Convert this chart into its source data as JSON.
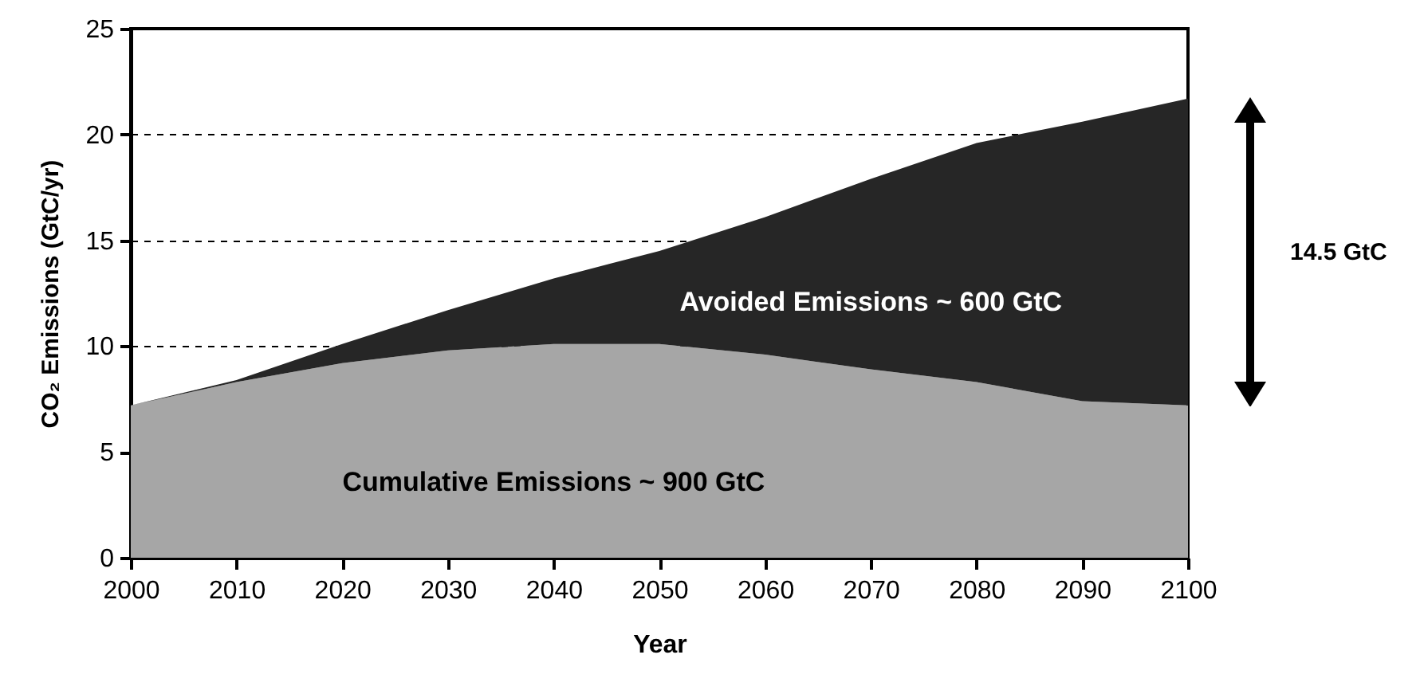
{
  "chart_data": {
    "type": "area",
    "stacked": true,
    "xlabel": "Year",
    "ylabel": "CO₂ Emissions (GtC/yr)",
    "x": [
      2000,
      2010,
      2020,
      2030,
      2040,
      2050,
      2060,
      2070,
      2080,
      2090,
      2100
    ],
    "series": [
      {
        "color": "#a6a6a6",
        "values": [
          7.2,
          8.3,
          9.2,
          9.8,
          10.1,
          10.1,
          9.6,
          8.9,
          8.3,
          7.4,
          7.2
        ]
      },
      {
        "color": "#262626",
        "values": [
          0,
          0.1,
          0.9,
          1.9,
          3.1,
          4.4,
          6.5,
          9.0,
          11.3,
          13.2,
          14.5
        ]
      }
    ],
    "xlim": [
      2000,
      2100
    ],
    "xticks": [
      2000,
      2010,
      2020,
      2030,
      2040,
      2050,
      2060,
      2070,
      2080,
      2090,
      2100
    ],
    "ylim": [
      0,
      25
    ],
    "yticks": [
      0,
      5,
      10,
      15,
      20,
      25
    ],
    "grid": "y",
    "line_style": "dashed",
    "annotations": [
      "Cumulative Emissions ~ 900 GtC",
      "Avoided Emissions ~ 600 GtC",
      "14.5 GtC"
    ]
  }
}
